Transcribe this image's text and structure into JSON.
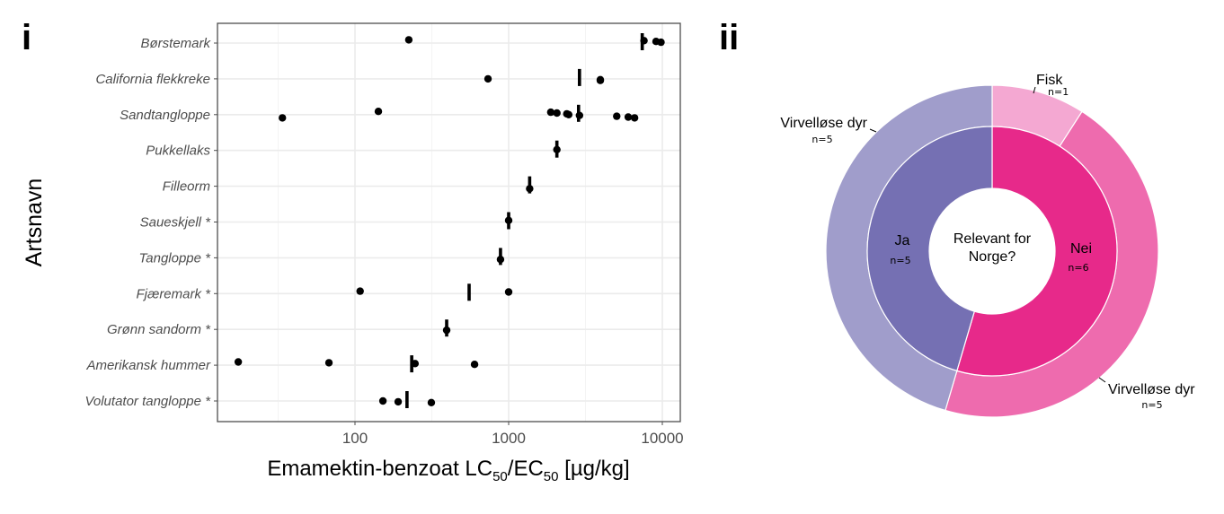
{
  "panels": {
    "left_label": "i",
    "right_label": "ii"
  },
  "chart_data": [
    {
      "type": "scatter",
      "panel": "i",
      "title": "",
      "xlabel": "Emamektin-benzoat LC50/EC50 [µg/kg]",
      "xlabel_parts": {
        "pre": "Emamektin-benzoat LC",
        "sub1": "50",
        "mid": "/EC",
        "sub2": "50",
        "post": " [µg/kg]"
      },
      "ylabel": "Artsnavn",
      "xscale": "log10",
      "xlim": [
        13,
        12000
      ],
      "xticks": [
        100,
        1000,
        10000
      ],
      "xtick_labels": [
        "100",
        "1000",
        "10000"
      ],
      "grid": true,
      "categories": [
        "Børstemark",
        "California flekkreke",
        "Sandtangloppe",
        "Pukkellaks",
        "Filleorm",
        "Saueskjell *",
        "Tangloppe *",
        "Fjæremark *",
        "Grønn sandorm *",
        "Amerikansk hummer",
        "Volutator tangloppe *"
      ],
      "series": [
        {
          "name": "LC50/EC50 values (points)",
          "marker": "circle",
          "points": [
            {
              "species": "Børstemark",
              "values": [
                224,
                7600,
                9100,
                9800
              ]
            },
            {
              "species": "California flekkreke",
              "values": [
                734,
                3950,
                3950
              ]
            },
            {
              "species": "Sandtangloppe",
              "values": [
                33.7,
                142,
                1880,
                2060,
                2390,
                2460,
                2890,
                5050,
                6000,
                6600
              ]
            },
            {
              "species": "Pukkellaks",
              "values": [
                2060
              ]
            },
            {
              "species": "Filleorm",
              "values": [
                1370
              ]
            },
            {
              "species": "Saueskjell *",
              "values": [
                1000
              ]
            },
            {
              "species": "Tangloppe *",
              "values": [
                885
              ]
            },
            {
              "species": "Fjæremark *",
              "values": [
                108,
                1000
              ]
            },
            {
              "species": "Grønn sandorm *",
              "values": [
                395
              ]
            },
            {
              "species": "Amerikansk hummer",
              "values": [
                17.4,
                67.7,
                246,
                600
              ]
            },
            {
              "species": "Volutator tangloppe *",
              "values": [
                152,
                191,
                314
              ]
            }
          ]
        },
        {
          "name": "Geometric mean (vertical bar)",
          "marker": "vline",
          "points": [
            {
              "species": "Børstemark",
              "value": 7400
            },
            {
              "species": "California flekkreke",
              "value": 2890
            },
            {
              "species": "Sandtangloppe",
              "value": 2850
            },
            {
              "species": "Pukkellaks",
              "value": 2060
            },
            {
              "species": "Filleorm",
              "value": 1370
            },
            {
              "species": "Saueskjell *",
              "value": 1000
            },
            {
              "species": "Tangloppe *",
              "value": 885
            },
            {
              "species": "Fjæremark *",
              "value": 553
            },
            {
              "species": "Grønn sandorm *",
              "value": 395
            },
            {
              "species": "Amerikansk hummer",
              "value": 234
            },
            {
              "species": "Volutator tangloppe *",
              "value": 218
            }
          ]
        }
      ]
    },
    {
      "type": "pie",
      "subtype": "donut-sunburst",
      "panel": "ii",
      "center_label": [
        "Relevant for",
        "Norge?"
      ],
      "inner_ring": [
        {
          "label": "Ja",
          "n_label": "n=5",
          "value": 5,
          "color": "#7570b3"
        },
        {
          "label": "Nei",
          "n_label": "n=6",
          "value": 6,
          "color": "#e7298a"
        }
      ],
      "outer_ring": [
        {
          "label": "Fisk",
          "n_label": "n=1",
          "value": 1,
          "parent": "Nei",
          "color": "#f4a8d2"
        },
        {
          "label": "Virvelløse dyr",
          "n_label": "n=5",
          "value": 5,
          "parent": "Nei",
          "color": "#ee6bae"
        },
        {
          "label": "Virvelløse dyr",
          "n_label": "n=5",
          "value": 5,
          "parent": "Ja",
          "color": "#a09dcb"
        }
      ]
    }
  ]
}
